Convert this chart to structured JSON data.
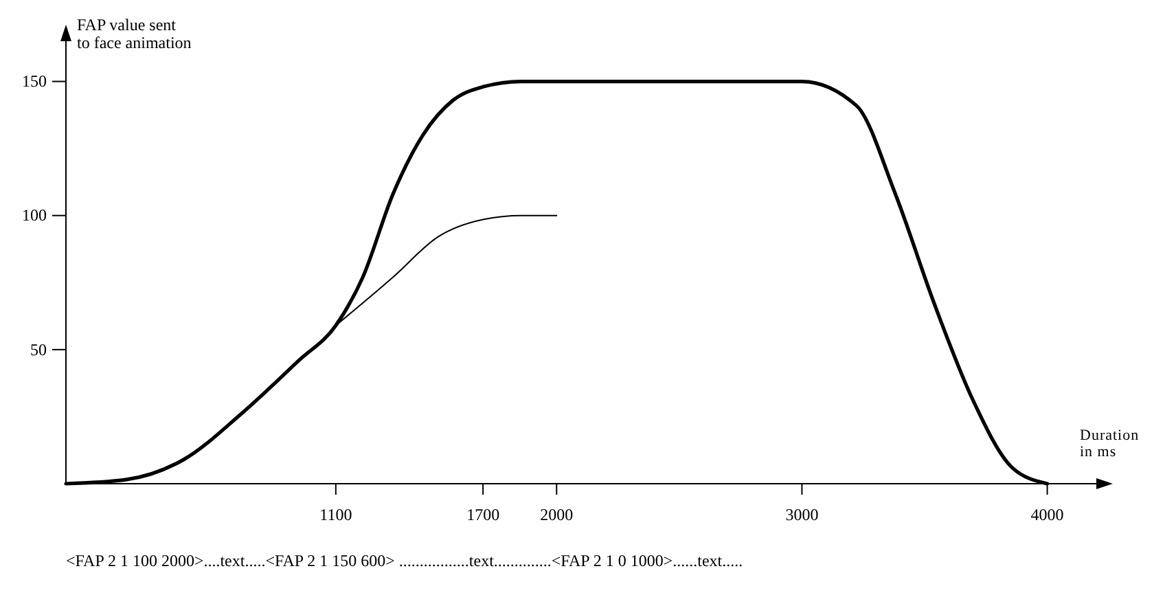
{
  "chart_data": {
    "type": "line",
    "xlabel": "Duration in ms",
    "ylabel": "FAP value sent to face animation",
    "xlim": [
      0,
      4200
    ],
    "ylim": [
      0,
      165
    ],
    "xticks": [
      1100,
      1700,
      2000,
      3000,
      4000
    ],
    "yticks": [
      50,
      100,
      150
    ],
    "grid": false,
    "marker": "none",
    "line_style": "solid",
    "series": [
      {
        "color": "#000000",
        "x": [
          0,
          244,
          480,
          714,
          950,
          1100,
          1210,
          1333,
          1455,
          1578,
          1700,
          1856,
          3000,
          3222,
          3381,
          3540,
          3698,
          3857,
          4000
        ],
        "values": [
          0,
          1.5,
          9,
          26,
          46,
          59,
          77,
          108,
          130,
          143,
          148,
          150,
          150,
          141,
          108,
          67,
          31,
          6,
          0
        ]
      },
      {
        "color": "#000000",
        "x": [
          1100,
          1333,
          1516,
          1700,
          1856,
          2000
        ],
        "values": [
          59,
          77,
          92,
          98.5,
          100,
          100
        ]
      }
    ],
    "annotations": [
      "<FAP 2 1 100  2000>....text.....<FAP 2 1 150 600> .................text..............<FAP 2 1 0 1000>......text....."
    ]
  }
}
